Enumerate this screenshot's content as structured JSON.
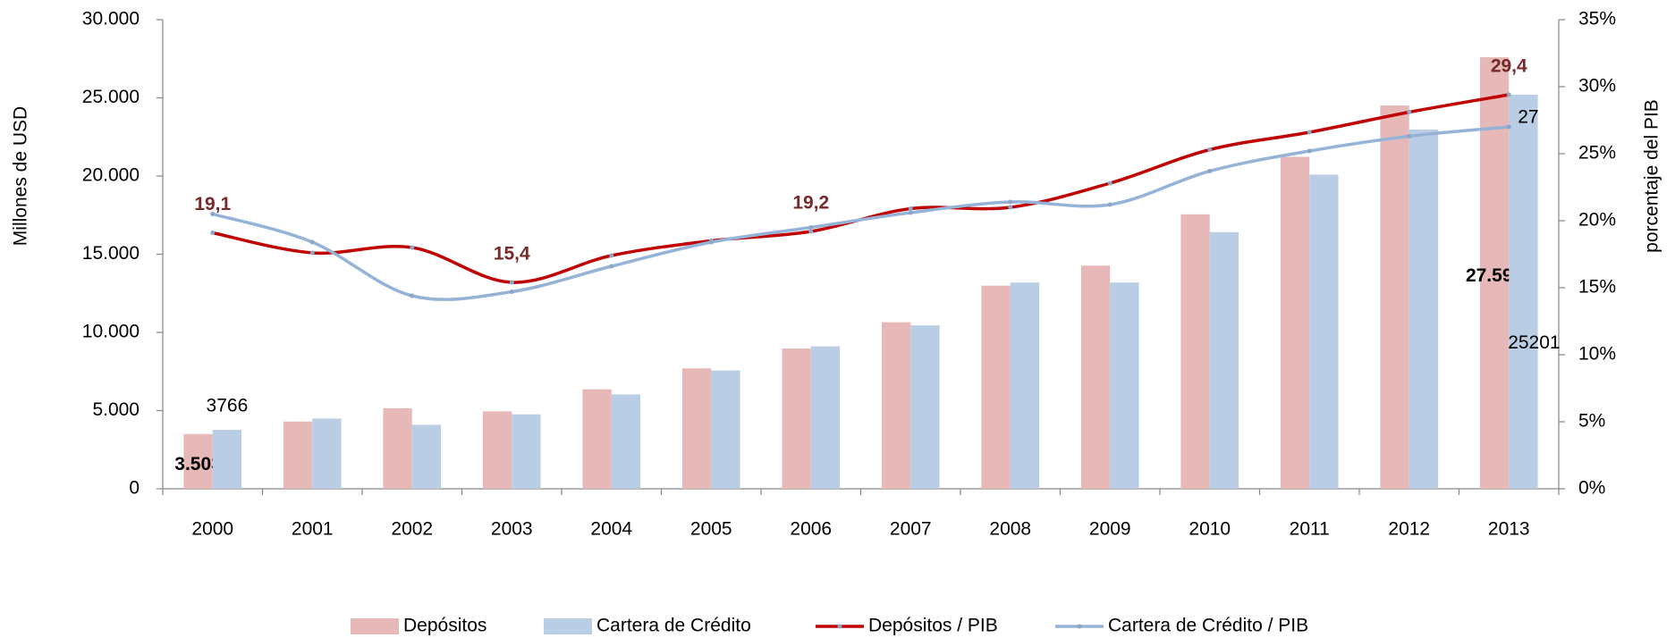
{
  "chart_data": {
    "type": "bar_line",
    "categories": [
      "2000",
      "2001",
      "2002",
      "2003",
      "2004",
      "2005",
      "2006",
      "2007",
      "2008",
      "2009",
      "2010",
      "2011",
      "2012",
      "2013"
    ],
    "ylabel": "Millones de USD",
    "y2label": "porcentaje del PIB",
    "ylim": [
      0,
      30000
    ],
    "yticks": [
      0,
      {
        "value": 5000,
        "label": "5.000"
      },
      {
        "value": 10000,
        "label": "10.000"
      },
      {
        "value": 15000,
        "label": "15.000"
      },
      {
        "value": 20000,
        "label": "20.000"
      },
      {
        "value": 25000,
        "label": "25.000"
      },
      {
        "value": 30000,
        "label": "30.000"
      }
    ],
    "y2lim": [
      0,
      35
    ],
    "y2ticks": [
      {
        "value": 0,
        "label": "0%"
      },
      {
        "value": 5,
        "label": "5%"
      },
      {
        "value": 10,
        "label": "10%"
      },
      {
        "value": 15,
        "label": "15%"
      },
      {
        "value": 20,
        "label": "20%"
      },
      {
        "value": 25,
        "label": "25%"
      },
      {
        "value": 30,
        "label": "30%"
      },
      {
        "value": 35,
        "label": "35%"
      }
    ],
    "legend": "bottom",
    "series": [
      {
        "name": "Depósitos",
        "kind": "bar",
        "color": "#e6b9b8",
        "values": [
          3503,
          4300,
          5150,
          4950,
          6360,
          7700,
          8970,
          10650,
          12990,
          14270,
          17550,
          21230,
          24510,
          27597
        ],
        "value_labels": [
          "3.503",
          null,
          null,
          null,
          null,
          null,
          null,
          null,
          null,
          null,
          null,
          null,
          null,
          "27.597"
        ]
      },
      {
        "name": "Cartera de Crédito",
        "kind": "bar",
        "color": "#b9cde5",
        "values": [
          3766,
          4490,
          4090,
          4760,
          6030,
          7570,
          9110,
          10450,
          13190,
          13190,
          16410,
          20090,
          22970,
          25201
        ],
        "value_labels": [
          "3766",
          null,
          null,
          null,
          null,
          null,
          null,
          null,
          null,
          null,
          null,
          null,
          null,
          "25201"
        ]
      },
      {
        "name": "Depósitos / PIB",
        "kind": "line",
        "axis": "y2",
        "color": "#c00000",
        "values": [
          19.1,
          17.6,
          18.0,
          15.4,
          17.4,
          18.5,
          19.2,
          20.9,
          21.0,
          22.8,
          25.3,
          26.6,
          28.1,
          29.4
        ],
        "value_labels": [
          "19,1",
          null,
          null,
          "15,4",
          null,
          null,
          "19,2",
          null,
          null,
          null,
          null,
          null,
          null,
          "29,4"
        ]
      },
      {
        "name": "Cartera de Crédito / PIB",
        "kind": "line",
        "axis": "y2",
        "color": "#95b3d7",
        "values": [
          20.5,
          18.4,
          14.4,
          14.7,
          16.6,
          18.4,
          19.5,
          20.6,
          21.4,
          21.2,
          23.7,
          25.2,
          26.3,
          27
        ],
        "value_labels": [
          null,
          null,
          null,
          null,
          null,
          null,
          null,
          null,
          null,
          null,
          null,
          null,
          null,
          "27"
        ]
      }
    ]
  }
}
